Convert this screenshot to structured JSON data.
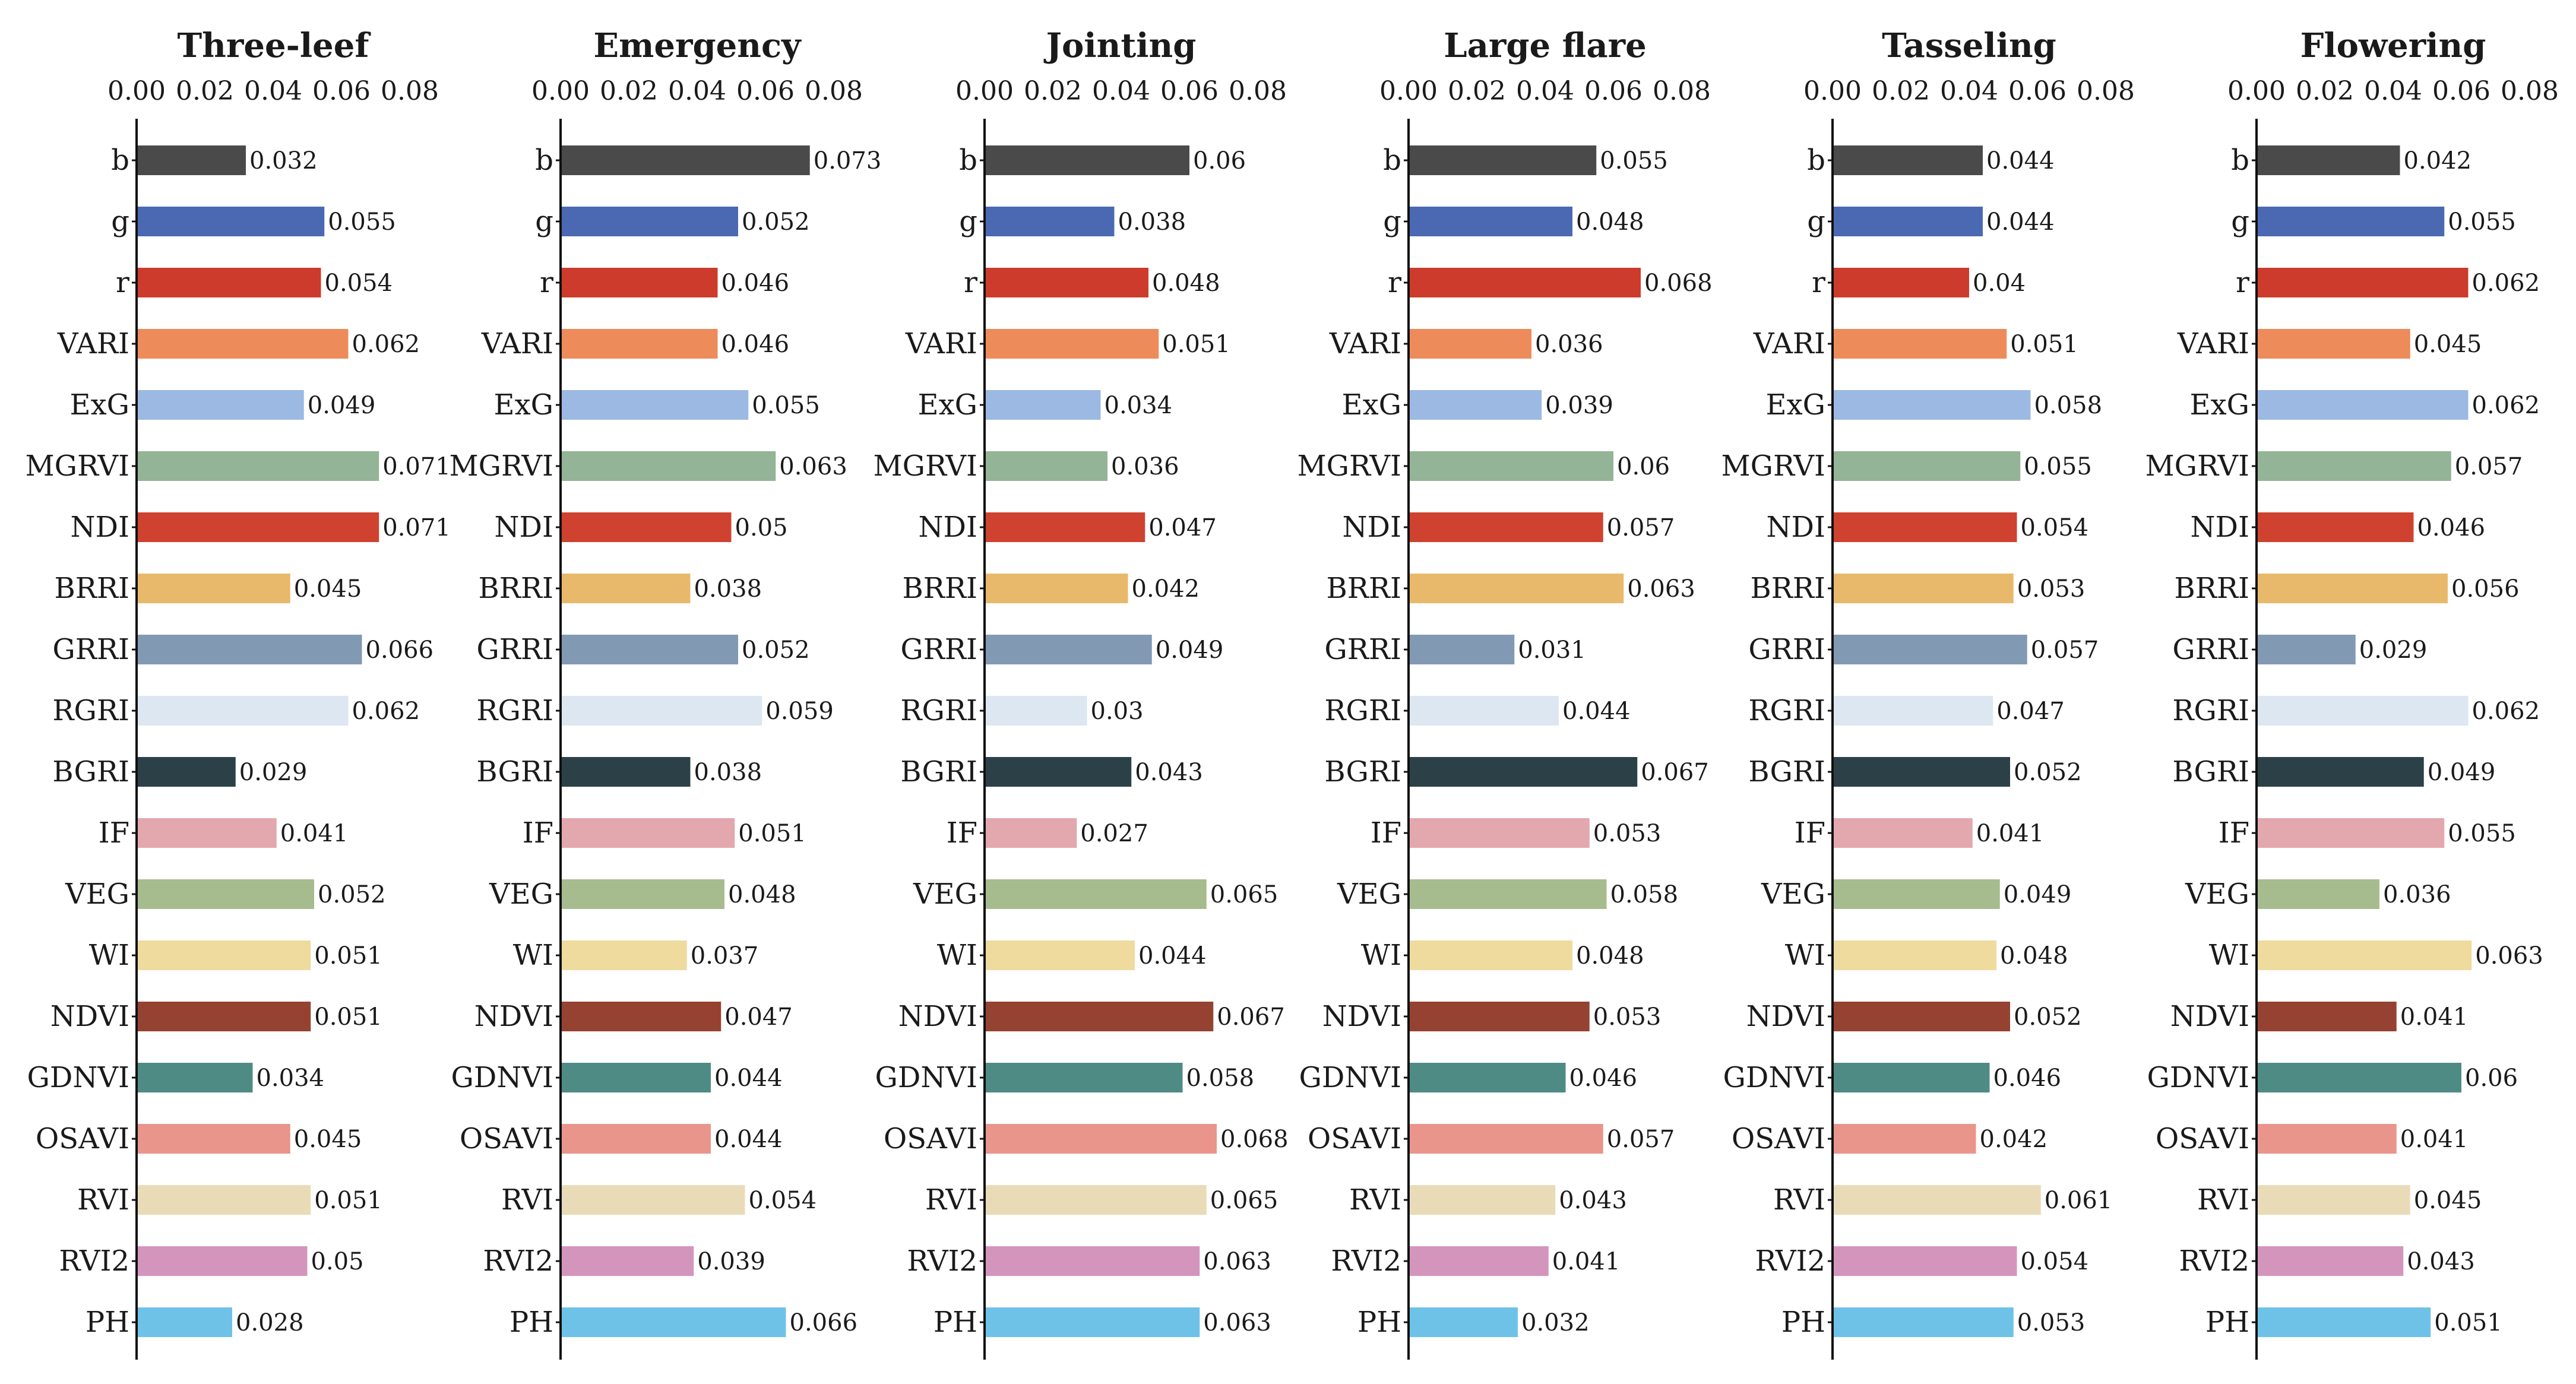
{
  "chart_data": [
    {
      "type": "bar",
      "orientation": "horizontal",
      "title": "Three-leef",
      "xlim": [
        0,
        0.08
      ],
      "xticks": [
        "0.00",
        "0.02",
        "0.04",
        "0.06",
        "0.08"
      ],
      "categories": [
        "b",
        "g",
        "r",
        "VARI",
        "ExG",
        "MGRVI",
        "NDI",
        "BRRI",
        "GRRI",
        "RGRI",
        "BGRI",
        "IF",
        "VEG",
        "WI",
        "NDVI",
        "GDNVI",
        "OSAVI",
        "RVI",
        "RVI2",
        "PH"
      ],
      "values": [
        0.032,
        0.055,
        0.054,
        0.062,
        0.049,
        0.071,
        0.071,
        0.045,
        0.066,
        0.062,
        0.029,
        0.041,
        0.052,
        0.051,
        0.051,
        0.034,
        0.045,
        0.051,
        0.05,
        0.028
      ],
      "value_labels": [
        "0.032",
        "0.055",
        "0.054",
        "0.062",
        "0.049",
        "0.071",
        "0.071",
        "0.045",
        "0.066",
        "0.062",
        "0.029",
        "0.041",
        "0.052",
        "0.051",
        "0.051",
        "0.034",
        "0.045",
        "0.051",
        "0.05",
        "0.028"
      ]
    },
    {
      "type": "bar",
      "orientation": "horizontal",
      "title": "Emergency",
      "xlim": [
        0,
        0.08
      ],
      "xticks": [
        "0.00",
        "0.02",
        "0.04",
        "0.06",
        "0.08"
      ],
      "categories": [
        "b",
        "g",
        "r",
        "VARI",
        "ExG",
        "MGRVI",
        "NDI",
        "BRRI",
        "GRRI",
        "RGRI",
        "BGRI",
        "IF",
        "VEG",
        "WI",
        "NDVI",
        "GDNVI",
        "OSAVI",
        "RVI",
        "RVI2",
        "PH"
      ],
      "values": [
        0.073,
        0.052,
        0.046,
        0.046,
        0.055,
        0.063,
        0.05,
        0.038,
        0.052,
        0.059,
        0.038,
        0.051,
        0.048,
        0.037,
        0.047,
        0.044,
        0.044,
        0.054,
        0.039,
        0.066
      ],
      "value_labels": [
        "0.073",
        "0.052",
        "0.046",
        "0.046",
        "0.055",
        "0.063",
        "0.05",
        "0.038",
        "0.052",
        "0.059",
        "0.038",
        "0.051",
        "0.048",
        "0.037",
        "0.047",
        "0.044",
        "0.044",
        "0.054",
        "0.039",
        "0.066"
      ]
    },
    {
      "type": "bar",
      "orientation": "horizontal",
      "title": "Jointing",
      "xlim": [
        0,
        0.08
      ],
      "xticks": [
        "0.00",
        "0.02",
        "0.04",
        "0.06",
        "0.08"
      ],
      "categories": [
        "b",
        "g",
        "r",
        "VARI",
        "ExG",
        "MGRVI",
        "NDI",
        "BRRI",
        "GRRI",
        "RGRI",
        "BGRI",
        "IF",
        "VEG",
        "WI",
        "NDVI",
        "GDNVI",
        "OSAVI",
        "RVI",
        "RVI2",
        "PH"
      ],
      "values": [
        0.06,
        0.038,
        0.048,
        0.051,
        0.034,
        0.036,
        0.047,
        0.042,
        0.049,
        0.03,
        0.043,
        0.027,
        0.065,
        0.044,
        0.067,
        0.058,
        0.068,
        0.065,
        0.063,
        0.063
      ],
      "value_labels": [
        "0.06",
        "0.038",
        "0.048",
        "0.051",
        "0.034",
        "0.036",
        "0.047",
        "0.042",
        "0.049",
        "0.03",
        "0.043",
        "0.027",
        "0.065",
        "0.044",
        "0.067",
        "0.058",
        "0.068",
        "0.065",
        "0.063",
        "0.063"
      ]
    },
    {
      "type": "bar",
      "orientation": "horizontal",
      "title": "Large flare",
      "xlim": [
        0,
        0.08
      ],
      "xticks": [
        "0.00",
        "0.02",
        "0.04",
        "0.06",
        "0.08"
      ],
      "categories": [
        "b",
        "g",
        "r",
        "VARI",
        "ExG",
        "MGRVI",
        "NDI",
        "BRRI",
        "GRRI",
        "RGRI",
        "BGRI",
        "IF",
        "VEG",
        "WI",
        "NDVI",
        "GDNVI",
        "OSAVI",
        "RVI",
        "RVI2",
        "PH"
      ],
      "values": [
        0.055,
        0.048,
        0.068,
        0.036,
        0.039,
        0.06,
        0.057,
        0.063,
        0.031,
        0.044,
        0.067,
        0.053,
        0.058,
        0.048,
        0.053,
        0.046,
        0.057,
        0.043,
        0.041,
        0.032
      ],
      "value_labels": [
        "0.055",
        "0.048",
        "0.068",
        "0.036",
        "0.039",
        "0.06",
        "0.057",
        "0.063",
        "0.031",
        "0.044",
        "0.067",
        "0.053",
        "0.058",
        "0.048",
        "0.053",
        "0.046",
        "0.057",
        "0.043",
        "0.041",
        "0.032"
      ]
    },
    {
      "type": "bar",
      "orientation": "horizontal",
      "title": "Tasseling",
      "xlim": [
        0,
        0.08
      ],
      "xticks": [
        "0.00",
        "0.02",
        "0.04",
        "0.06",
        "0.08"
      ],
      "categories": [
        "b",
        "g",
        "r",
        "VARI",
        "ExG",
        "MGRVI",
        "NDI",
        "BRRI",
        "GRRI",
        "RGRI",
        "BGRI",
        "IF",
        "VEG",
        "WI",
        "NDVI",
        "GDNVI",
        "OSAVI",
        "RVI",
        "RVI2",
        "PH"
      ],
      "values": [
        0.044,
        0.044,
        0.04,
        0.051,
        0.058,
        0.055,
        0.054,
        0.053,
        0.057,
        0.047,
        0.052,
        0.041,
        0.049,
        0.048,
        0.052,
        0.046,
        0.042,
        0.061,
        0.054,
        0.053
      ],
      "value_labels": [
        "0.044",
        "0.044",
        "0.04",
        "0.051",
        "0.058",
        "0.055",
        "0.054",
        "0.053",
        "0.057",
        "0.047",
        "0.052",
        "0.041",
        "0.049",
        "0.048",
        "0.052",
        "0.046",
        "0.042",
        "0.061",
        "0.054",
        "0.053"
      ]
    },
    {
      "type": "bar",
      "orientation": "horizontal",
      "title": "Flowering",
      "xlim": [
        0,
        0.08
      ],
      "xticks": [
        "0.00",
        "0.02",
        "0.04",
        "0.06",
        "0.08"
      ],
      "categories": [
        "b",
        "g",
        "r",
        "VARI",
        "ExG",
        "MGRVI",
        "NDI",
        "BRRI",
        "GRRI",
        "RGRI",
        "BGRI",
        "IF",
        "VEG",
        "WI",
        "NDVI",
        "GDNVI",
        "OSAVI",
        "RVI",
        "RVI2",
        "PH"
      ],
      "values": [
        0.042,
        0.055,
        0.062,
        0.045,
        0.062,
        0.057,
        0.046,
        0.056,
        0.029,
        0.062,
        0.049,
        0.055,
        0.036,
        0.063,
        0.041,
        0.06,
        0.041,
        0.045,
        0.043,
        0.051
      ],
      "value_labels": [
        "0.042",
        "0.055",
        "0.062",
        "0.045",
        "0.062",
        "0.057",
        "0.046",
        "0.056",
        "0.029",
        "0.062",
        "0.049",
        "0.055",
        "0.036",
        "0.063",
        "0.041",
        "0.06",
        "0.041",
        "0.045",
        "0.043",
        "0.051"
      ]
    }
  ],
  "colors": [
    "#4a4a4a",
    "#4a69b2",
    "#cc3b2b",
    "#ee8b5a",
    "#9bb9e2",
    "#93b496",
    "#cf4230",
    "#e8b96a",
    "#8199b3",
    "#dce7f1",
    "#2b4147",
    "#e3a7ae",
    "#a7bc8e",
    "#eedb9d",
    "#964233",
    "#4f8b85",
    "#e9958b",
    "#eadbb8",
    "#d495bd",
    "#6ec2e8"
  ]
}
